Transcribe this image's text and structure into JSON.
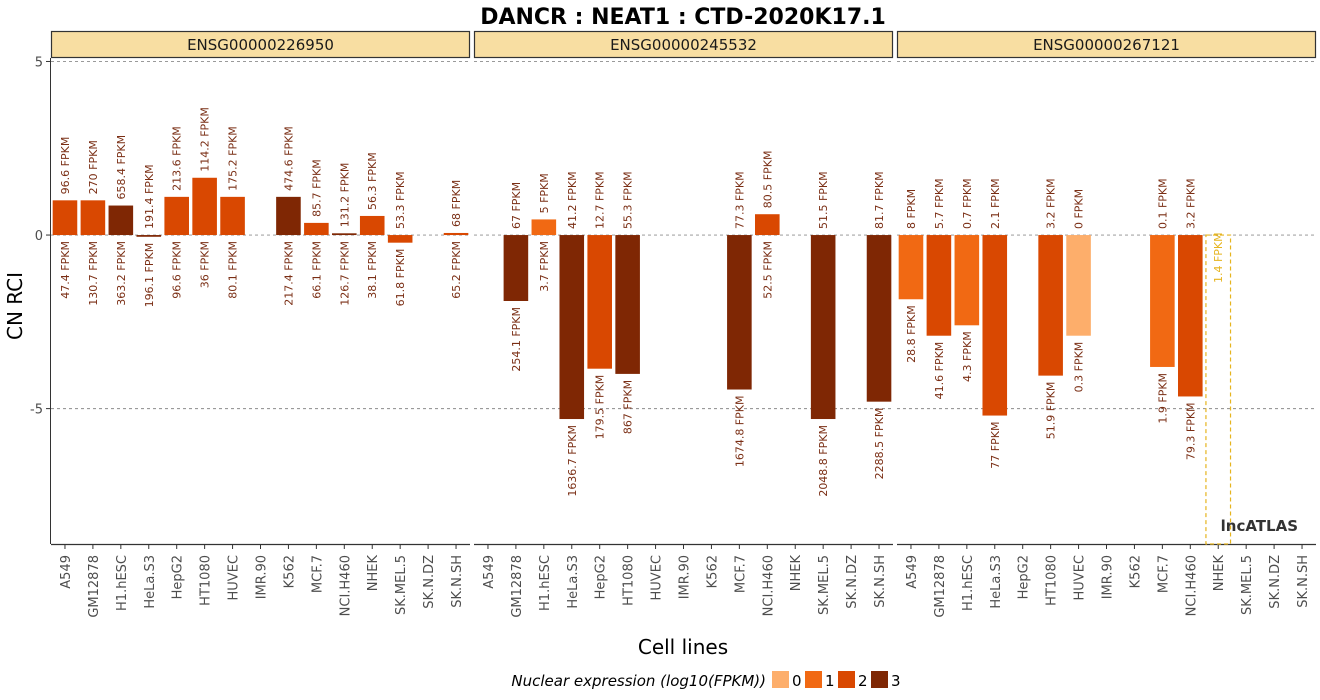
{
  "chart_data": {
    "type": "bar",
    "title": "DANCR : NEAT1 : CTD-2020K17.1",
    "xlabel": "Cell lines",
    "ylabel": "CN RCI",
    "ylim": [
      -8.9,
      5.1
    ],
    "yticks": [
      5,
      0,
      -5
    ],
    "ytick_labels": [
      "5",
      "0",
      "-5"
    ],
    "grid": "dashed horizontal at y ticks",
    "cell_lines": [
      "A549",
      "GM12878",
      "H1.hESC",
      "HeLa.S3",
      "HepG2",
      "HT1080",
      "HUVEC",
      "IMR.90",
      "K562",
      "MCF.7",
      "NCI.H460",
      "NHEK",
      "SK.MEL.5",
      "SK.N.DZ",
      "SK.N.SH"
    ],
    "legend": {
      "title": "Nuclear expression (log10(FPKM))",
      "placement": "bottom",
      "levels": [
        {
          "label": "0",
          "color": "#fdae6b"
        },
        {
          "label": "1",
          "color": "#f16913"
        },
        {
          "label": "2",
          "color": "#d94801"
        },
        {
          "label": "3",
          "color": "#7f2704"
        }
      ]
    },
    "panels": [
      {
        "gene": "ENSG00000226950",
        "bars": [
          {
            "cell": "A549",
            "value": 1.0,
            "level": 2,
            "cyto": "96.6 FPKM",
            "nuc": "47.4 FPKM"
          },
          {
            "cell": "GM12878",
            "value": 1.0,
            "level": 2,
            "cyto": "270 FPKM",
            "nuc": "130.7 FPKM"
          },
          {
            "cell": "H1.hESC",
            "value": 0.85,
            "level": 3,
            "cyto": "658.4 FPKM",
            "nuc": "363.2 FPKM"
          },
          {
            "cell": "HeLa.S3",
            "value": -0.05,
            "level": 3,
            "cyto": "191.4 FPKM",
            "nuc": "196.1 FPKM"
          },
          {
            "cell": "HepG2",
            "value": 1.1,
            "level": 2,
            "cyto": "213.6 FPKM",
            "nuc": "96.6 FPKM"
          },
          {
            "cell": "HT1080",
            "value": 1.65,
            "level": 2,
            "cyto": "114.2 FPKM",
            "nuc": "36 FPKM"
          },
          {
            "cell": "HUVEC",
            "value": 1.1,
            "level": 2,
            "cyto": "175.2 FPKM",
            "nuc": "80.1 FPKM"
          },
          {
            "cell": "K562",
            "value": 1.1,
            "level": 3,
            "cyto": "474.6 FPKM",
            "nuc": "217.4 FPKM"
          },
          {
            "cell": "MCF.7",
            "value": 0.35,
            "level": 2,
            "cyto": "85.7 FPKM",
            "nuc": "66.1 FPKM"
          },
          {
            "cell": "NCI.H460",
            "value": 0.05,
            "level": 3,
            "cyto": "131.2 FPKM",
            "nuc": "126.7 FPKM"
          },
          {
            "cell": "NHEK",
            "value": 0.55,
            "level": 2,
            "cyto": "56.3 FPKM",
            "nuc": "38.1 FPKM"
          },
          {
            "cell": "SK.MEL.5",
            "value": -0.22,
            "level": 2,
            "cyto": "53.3 FPKM",
            "nuc": "61.8 FPKM"
          },
          {
            "cell": "SK.N.SH",
            "value": 0.06,
            "level": 2,
            "cyto": "68 FPKM",
            "nuc": "65.2 FPKM"
          }
        ]
      },
      {
        "gene": "ENSG00000245532",
        "bars": [
          {
            "cell": "GM12878",
            "value": -1.9,
            "level": 3,
            "cyto": "67 FPKM",
            "nuc": "254.1 FPKM"
          },
          {
            "cell": "H1.hESC",
            "value": 0.45,
            "level": 1,
            "cyto": "5 FPKM",
            "nuc": "3.7 FPKM"
          },
          {
            "cell": "HeLa.S3",
            "value": -5.3,
            "level": 3,
            "cyto": "41.2 FPKM",
            "nuc": "1636.7 FPKM"
          },
          {
            "cell": "HepG2",
            "value": -3.85,
            "level": 2,
            "cyto": "12.7 FPKM",
            "nuc": "179.5 FPKM"
          },
          {
            "cell": "HT1080",
            "value": -4.0,
            "level": 3,
            "cyto": "55.3 FPKM",
            "nuc": "867 FPKM"
          },
          {
            "cell": "MCF.7",
            "value": -4.45,
            "level": 3,
            "cyto": "77.3 FPKM",
            "nuc": "1674.8 FPKM"
          },
          {
            "cell": "NCI.H460",
            "value": 0.6,
            "level": 2,
            "cyto": "80.5 FPKM",
            "nuc": "52.5 FPKM"
          },
          {
            "cell": "SK.MEL.5",
            "value": -5.3,
            "level": 3,
            "cyto": "51.5 FPKM",
            "nuc": "2048.8 FPKM"
          },
          {
            "cell": "SK.N.SH",
            "value": -4.8,
            "level": 3,
            "cyto": "81.7 FPKM",
            "nuc": "2288.5 FPKM"
          }
        ]
      },
      {
        "gene": "ENSG00000267121",
        "bars": [
          {
            "cell": "A549",
            "value": -1.85,
            "level": 1,
            "cyto": "8 FPKM",
            "nuc": "28.8 FPKM"
          },
          {
            "cell": "GM12878",
            "value": -2.9,
            "level": 2,
            "cyto": "5.7 FPKM",
            "nuc": "41.6 FPKM"
          },
          {
            "cell": "H1.hESC",
            "value": -2.6,
            "level": 1,
            "cyto": "0.7 FPKM",
            "nuc": "4.3 FPKM"
          },
          {
            "cell": "HeLa.S3",
            "value": -5.2,
            "level": 2,
            "cyto": "2.1 FPKM",
            "nuc": "77 FPKM"
          },
          {
            "cell": "HT1080",
            "value": -4.05,
            "level": 2,
            "cyto": "3.2 FPKM",
            "nuc": "51.9 FPKM"
          },
          {
            "cell": "HUVEC",
            "value": -2.9,
            "level": 0,
            "cyto": "0 FPKM",
            "nuc": "0.3 FPKM"
          },
          {
            "cell": "MCF.7",
            "value": -3.8,
            "level": 1,
            "cyto": "0.1 FPKM",
            "nuc": "1.9 FPKM"
          },
          {
            "cell": "NCI.H460",
            "value": -4.65,
            "level": 2,
            "cyto": "3.2 FPKM",
            "nuc": "79.3 FPKM"
          }
        ],
        "annotation": {
          "cell": "NHEK",
          "label": "1.4 FPKM",
          "color": "#e6b41e"
        }
      }
    ],
    "watermark": "lncATLAS"
  }
}
